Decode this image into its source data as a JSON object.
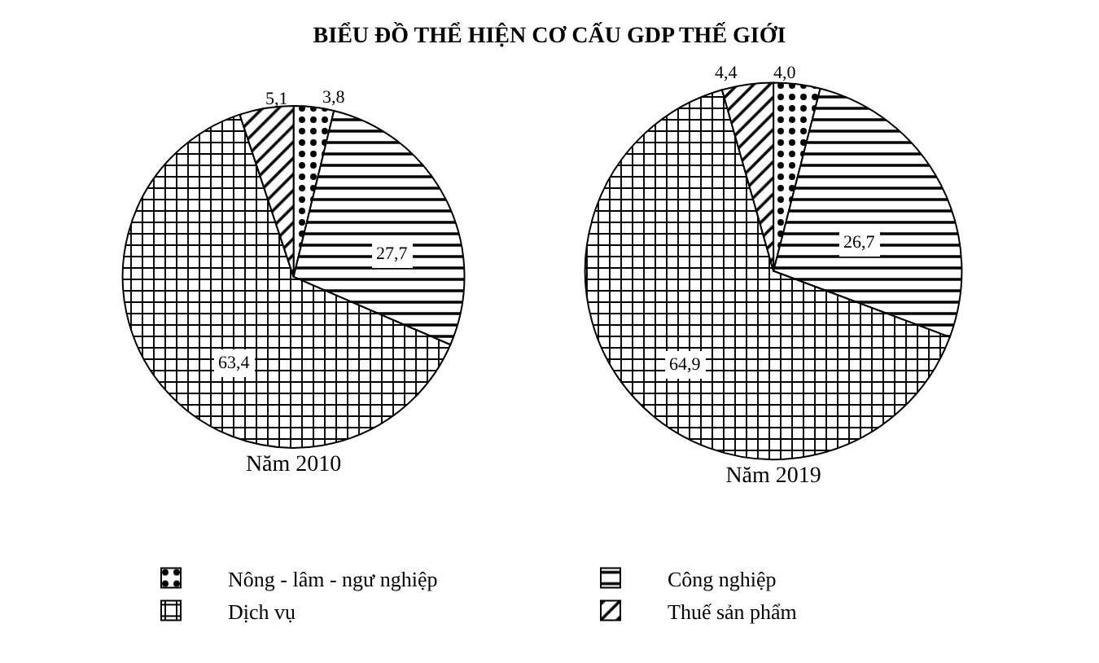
{
  "chart_data": {
    "type": "pie",
    "title": "BIỂU ĐỒ THỂ HIỆN CƠ CẤU GDP THẾ GIỚI",
    "categories": [
      "Nông - lâm - ngư nghiệp",
      "Công nghiệp",
      "Dịch vụ",
      "Thuế sản phẩm"
    ],
    "colors": [
      "#000000",
      "#000000",
      "#000000",
      "#000000"
    ],
    "legend": "bottom",
    "series": [
      {
        "name": "Năm 2010",
        "values": [
          3.8,
          27.7,
          63.4,
          5.1
        ],
        "value_labels": [
          "3,8",
          "27,7",
          "63,4",
          "5,1"
        ]
      },
      {
        "name": "Năm 2019",
        "values": [
          4.0,
          26.7,
          64.9,
          4.4
        ],
        "value_labels": [
          "4,0",
          "26,7",
          "64,9",
          "4,4"
        ]
      }
    ]
  }
}
